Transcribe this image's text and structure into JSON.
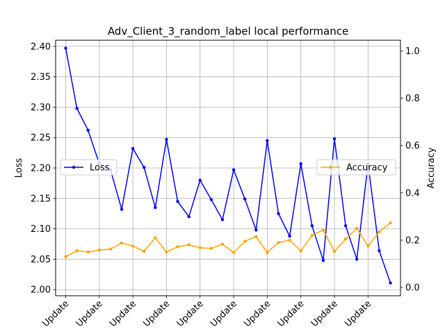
{
  "chart_data": {
    "type": "line",
    "title": "Adv_Client_3_random_label local performance",
    "xlabel": "",
    "ylabel_left": "Loss",
    "ylabel_right": "Accuracy",
    "x_tick_labels": [
      "Update",
      "Update",
      "Update",
      "Update",
      "Update",
      "Update",
      "Update",
      "Update",
      "Update",
      "Update"
    ],
    "x_tick_positions": [
      0,
      3,
      6,
      9,
      12,
      15,
      18,
      21,
      24,
      27
    ],
    "xlim": [
      -0.9,
      29.9
    ],
    "ylim_left": [
      1.99,
      2.41
    ],
    "ylim_right": [
      -0.035,
      1.045
    ],
    "y_ticks_left": [
      "2.00",
      "2.05",
      "2.10",
      "2.15",
      "2.20",
      "2.25",
      "2.30",
      "2.35",
      "2.40"
    ],
    "y_ticks_right": [
      "0.0",
      "0.2",
      "0.4",
      "0.6",
      "0.8",
      "1.0"
    ],
    "grid": true,
    "series": [
      {
        "name": "Loss",
        "axis": "left",
        "color": "#0000ff",
        "legend_position": "center-left",
        "values": [
          2.397,
          2.298,
          2.262,
          2.207,
          2.197,
          2.132,
          2.232,
          2.201,
          2.135,
          2.247,
          2.145,
          2.12,
          2.18,
          2.148,
          2.115,
          2.197,
          2.149,
          2.098,
          2.245,
          2.125,
          2.088,
          2.207,
          2.105,
          2.048,
          2.248,
          2.105,
          2.05,
          2.207,
          2.064,
          2.011
        ]
      },
      {
        "name": "Accuracy",
        "axis": "right",
        "color": "#ffa500",
        "legend_position": "center-right",
        "values": [
          0.13,
          0.155,
          0.15,
          0.158,
          0.162,
          0.188,
          0.175,
          0.153,
          0.21,
          0.15,
          0.172,
          0.18,
          0.168,
          0.165,
          0.183,
          0.148,
          0.195,
          0.215,
          0.148,
          0.19,
          0.2,
          0.155,
          0.22,
          0.243,
          0.152,
          0.205,
          0.25,
          0.175,
          0.235,
          0.273
        ]
      }
    ]
  }
}
